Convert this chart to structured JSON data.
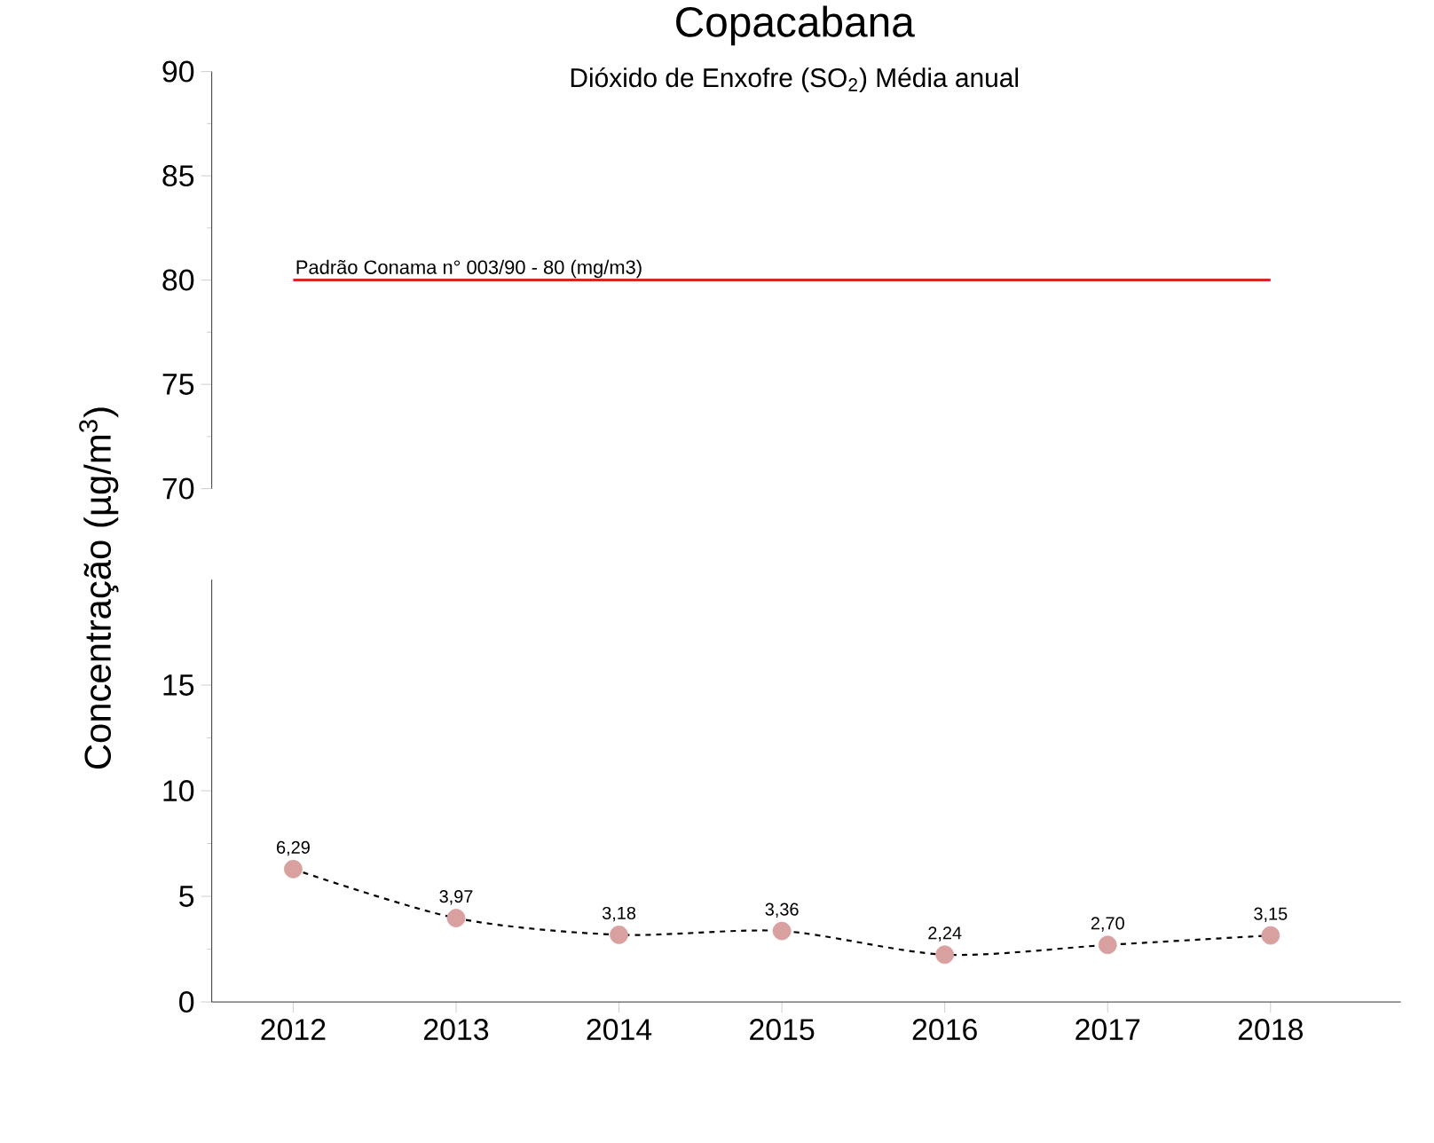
{
  "chart_data": [
    {
      "type": "line",
      "title": "Copacabana",
      "subtitle": "Dióxido de Enxofre (SO$_{2}$) Média anual",
      "categories": [
        "2012",
        "2013",
        "2014",
        "2015",
        "2016",
        "2017",
        "2018"
      ],
      "ylim": [
        70,
        90
      ],
      "yticks": [
        70,
        75,
        80,
        85,
        90
      ],
      "tick_labels": "y",
      "ref_lines": [
        {
          "axis": "y",
          "value": 80,
          "label": "Padrão Conama n° 003/90 - 80 (mg/m3)",
          "color": "#d62728"
        }
      ]
    },
    {
      "type": "line",
      "ylabel": "Concentração (µg/m$^{3}$)",
      "categories": [
        "2012",
        "2013",
        "2014",
        "2015",
        "2016",
        "2017",
        "2018"
      ],
      "ylim": [
        0,
        20
      ],
      "yticks": [
        0,
        5,
        10,
        15
      ],
      "marker": "circle",
      "line_style": "dashed",
      "series": [
        {
          "color": "#d9a0a0",
          "values": [
            6.29,
            3.97,
            3.18,
            3.36,
            2.24,
            2.7,
            3.15
          ],
          "value_labels": [
            "6,29",
            "3,97",
            "3,18",
            "3,36",
            "2,24",
            "2,70",
            "3,15"
          ]
        }
      ]
    }
  ]
}
